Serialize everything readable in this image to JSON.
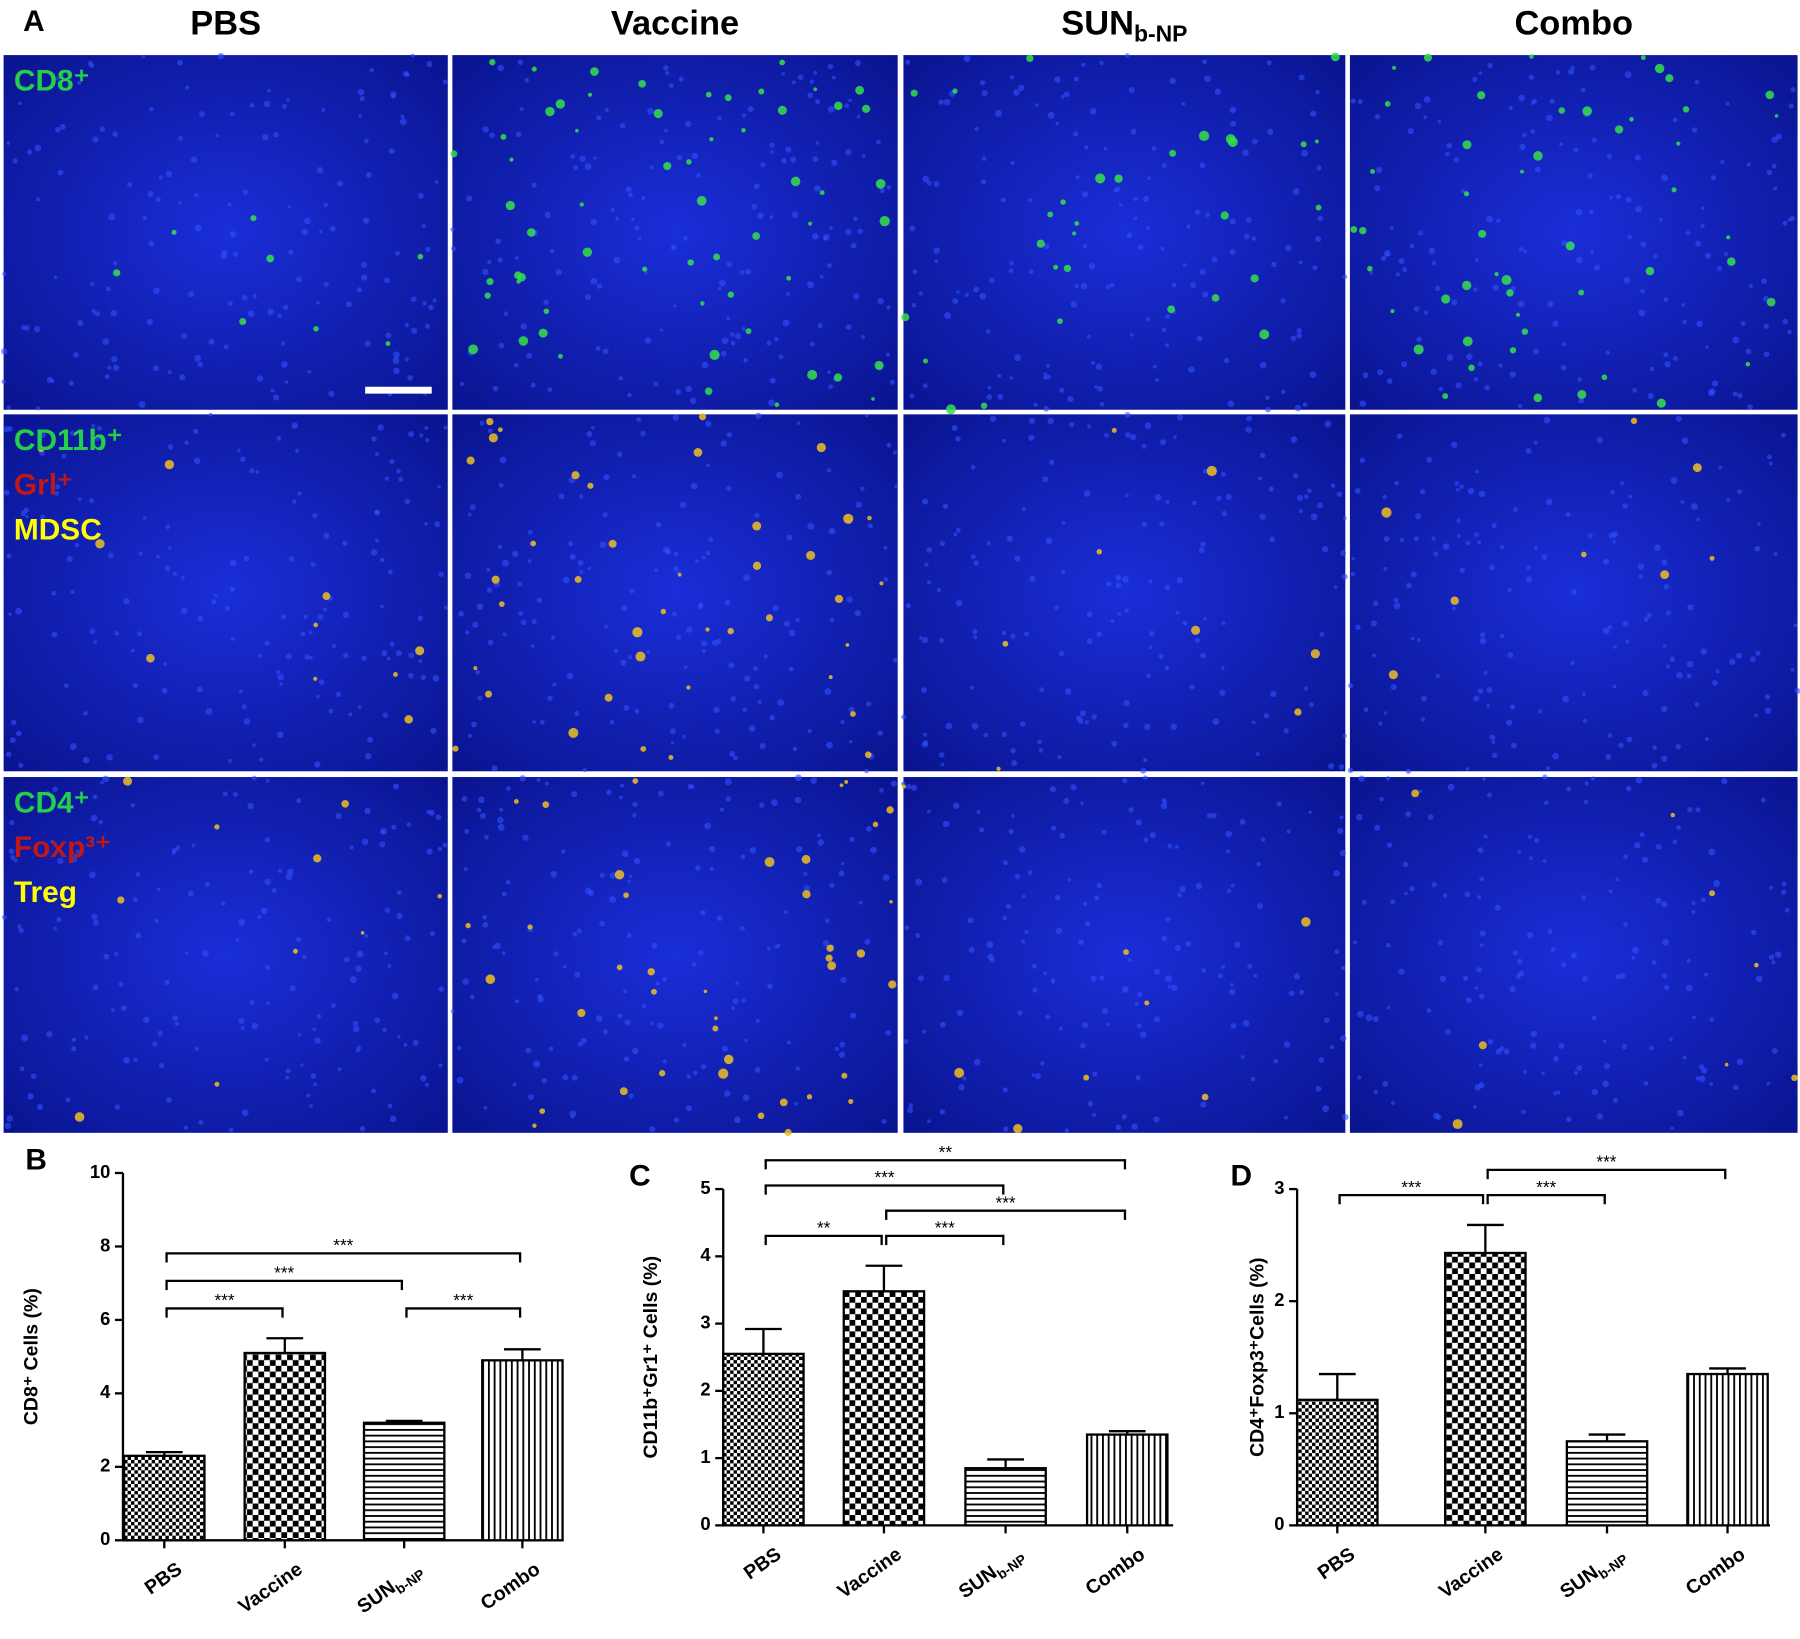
{
  "panel_a": {
    "label": "A",
    "columns": [
      "PBS",
      "Vaccine",
      [
        "SUN",
        "b-NP"
      ],
      "Combo"
    ],
    "rows": [
      [
        "CD8⁺"
      ],
      [
        "CD11b⁺",
        "Grl⁺",
        "MDSC"
      ],
      [
        "CD4⁺",
        "Foxp³⁺",
        "Treg"
      ]
    ]
  },
  "chart_data": [
    {
      "type": "bar",
      "panel": "B",
      "ylabel": "CD8⁺ Cells (%)",
      "categories": [
        "PBS",
        "Vaccine",
        [
          "SUN",
          "b-NP"
        ],
        "Combo"
      ],
      "values": [
        2.3,
        5.1,
        3.2,
        4.9
      ],
      "errors": [
        0.1,
        0.4,
        0.05,
        0.3
      ],
      "ylim": [
        0,
        10
      ],
      "yticks": [
        0,
        2,
        4,
        6,
        8,
        10
      ],
      "significance": [
        {
          "pair": [
            0,
            1
          ],
          "label": "***"
        },
        {
          "pair": [
            0,
            2
          ],
          "label": "***"
        },
        {
          "pair": [
            2,
            3
          ],
          "label": "***"
        },
        {
          "pair": [
            0,
            3
          ],
          "label": "***"
        }
      ]
    },
    {
      "type": "bar",
      "panel": "C",
      "ylabel": "CD11b⁺Gr1⁺ Cells (%)",
      "categories": [
        "PBS",
        "Vaccine",
        [
          "SUN",
          "b-NP"
        ],
        "Combo"
      ],
      "values": [
        2.55,
        3.48,
        0.85,
        1.35
      ],
      "errors": [
        0.37,
        0.38,
        0.13,
        0.05
      ],
      "ylim": [
        0,
        5
      ],
      "yticks": [
        0,
        1,
        2,
        3,
        4,
        5
      ],
      "significance": [
        {
          "pair": [
            0,
            1
          ],
          "label": "**"
        },
        {
          "pair": [
            1,
            2
          ],
          "label": "***"
        },
        {
          "pair": [
            1,
            3
          ],
          "label": "***"
        },
        {
          "pair": [
            0,
            2
          ],
          "label": "***"
        },
        {
          "pair": [
            0,
            3
          ],
          "label": "**"
        }
      ]
    },
    {
      "type": "bar",
      "panel": "D",
      "ylabel": "CD4⁺Foxp3⁺Cells (%)",
      "categories": [
        "PBS",
        "Vaccine",
        [
          "SUN",
          "b-NP"
        ],
        "Combo"
      ],
      "values": [
        1.12,
        2.43,
        0.75,
        1.35
      ],
      "errors": [
        0.23,
        0.25,
        0.06,
        0.05
      ],
      "ylim": [
        0,
        3
      ],
      "yticks": [
        0,
        1,
        2,
        3
      ],
      "significance": [
        {
          "pair": [
            0,
            1
          ],
          "label": "***"
        },
        {
          "pair": [
            1,
            2
          ],
          "label": "***"
        },
        {
          "pair": [
            1,
            3
          ],
          "label": "***"
        }
      ]
    }
  ]
}
